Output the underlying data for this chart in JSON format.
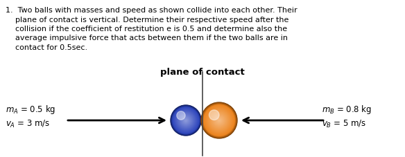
{
  "body_lines": [
    "1.  Two balls with masses and speed as shown collide into each other. Their",
    "    plane of contact is vertical. Determine their respective speed after the",
    "    collision if the coefficient of restitution e is 0.5 and determine also the",
    "    average impulsive force that acts between them if the two balls are in",
    "    contact for 0.5sec."
  ],
  "plane_label": "plane of contact",
  "ball_A_label_mass": "$m_A$ = 0.5 kg",
  "ball_A_label_vel": "$v_A$ = 3 m/s",
  "ball_B_label_mass": "$m_B$ = 0.8 kg",
  "ball_B_label_vel": "$v_B$ = 5 m/s",
  "bg_color": "#ffffff",
  "text_color": "#000000",
  "font_size_body": 8.0,
  "font_size_plane": 9.5,
  "font_size_labels": 8.5,
  "line_color": "#444444"
}
